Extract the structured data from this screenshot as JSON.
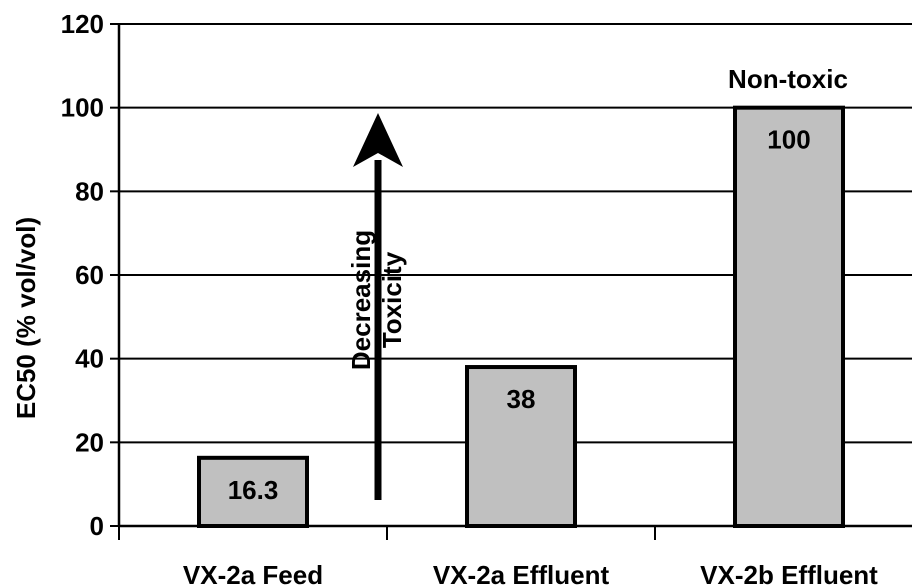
{
  "chart_data": {
    "type": "bar",
    "categories": [
      "VX-2a Feed",
      "VX-2a Effluent",
      "VX-2b Effluent"
    ],
    "values": [
      16.3,
      38,
      100
    ],
    "data_labels": [
      "16.3",
      "38",
      "100"
    ],
    "title": "",
    "xlabel": "",
    "ylabel": "EC50 (% vol/vol)",
    "ylim": [
      0,
      120
    ],
    "yticks": [
      0,
      20,
      40,
      60,
      80,
      100,
      120
    ],
    "ytick_labels": [
      "0",
      "20",
      "40",
      "60",
      "80",
      "100",
      "120"
    ],
    "grid": true,
    "bar_color": "#c0c0c0",
    "annotations": {
      "non_toxic": "Non-toxic",
      "arrow_line1": "Decreasing",
      "arrow_line2": "Toxicity"
    }
  }
}
